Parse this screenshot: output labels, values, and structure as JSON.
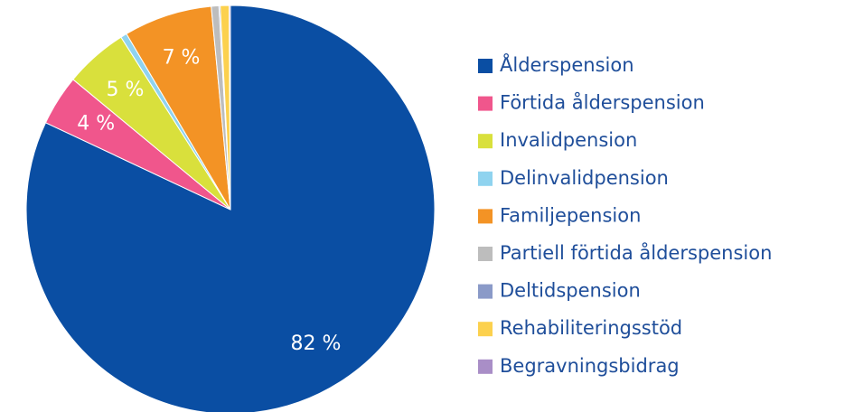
{
  "chart_data": {
    "type": "pie",
    "categories": [
      "Ålderspension",
      "Förtida ålderspension",
      "Invalidpension",
      "Delinvalidpension",
      "Familjepension",
      "Partiell förtida ålderspension",
      "Deltidspension",
      "Rehabiliteringsstöd",
      "Begravningsbidrag"
    ],
    "values": [
      82,
      4,
      5,
      0.5,
      7,
      0.6,
      0.1,
      0.7,
      0.1
    ],
    "value_labels": [
      "82 %",
      "4 %",
      "5 %",
      null,
      "7 %",
      null,
      null,
      null,
      null
    ],
    "colors": [
      "#0a4ea3",
      "#f0568c",
      "#d9e03c",
      "#8fd3ef",
      "#f39325",
      "#bdbdbd",
      "#8a9ac8",
      "#fcd14e",
      "#a98ec7"
    ],
    "legend": "right"
  }
}
